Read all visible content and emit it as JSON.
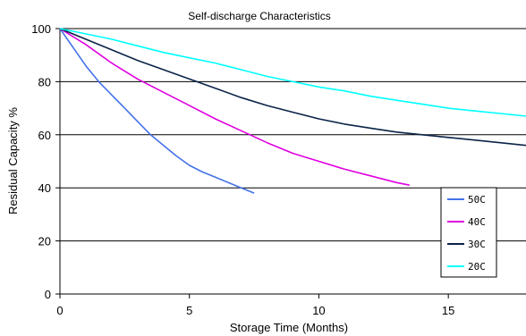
{
  "chart_data": {
    "type": "line",
    "title": "Self-discharge Characteristics",
    "xlabel": "Storage Time (Months)",
    "ylabel": "Residual Capacity %",
    "xlim": [
      0,
      18
    ],
    "ylim": [
      0,
      100
    ],
    "x_ticks": [
      "0",
      "5",
      "10",
      "15"
    ],
    "y_ticks": [
      "0",
      "20",
      "40",
      "60",
      "80",
      "100"
    ],
    "grid": "horizontal",
    "legend_position": "bottom-right",
    "series": [
      {
        "name": "50C",
        "color": "#4472E8",
        "x": [
          0,
          0.5,
          1,
          1.5,
          2,
          2.5,
          3,
          3.5,
          4,
          4.5,
          5,
          5.5,
          6,
          6.5,
          7,
          7.5
        ],
        "y": [
          100,
          93,
          86,
          80,
          75,
          70,
          65,
          60,
          56,
          52,
          48.5,
          46,
          44,
          42,
          40,
          38
        ]
      },
      {
        "name": "40C",
        "color": "#E000E0",
        "x": [
          0,
          1,
          2,
          3,
          4,
          5,
          6,
          7,
          8,
          9,
          10,
          11,
          12,
          13,
          13.5
        ],
        "y": [
          100,
          94,
          87,
          81,
          76,
          71,
          66,
          61.5,
          57,
          53,
          50,
          47,
          44.5,
          42,
          41
        ]
      },
      {
        "name": "30C",
        "color": "#0B2348",
        "x": [
          0,
          1,
          2,
          3,
          4,
          5,
          6,
          7,
          8,
          9,
          10,
          11,
          12,
          13,
          14,
          15,
          16,
          17,
          18
        ],
        "y": [
          100,
          96,
          92,
          88,
          84.5,
          81,
          77.5,
          74,
          71,
          68.5,
          66,
          64,
          62.5,
          61,
          60,
          59,
          58,
          57,
          56
        ]
      },
      {
        "name": "20C",
        "color": "#00FFFF",
        "x": [
          0,
          1,
          2,
          3,
          4,
          5,
          6,
          7,
          8,
          9,
          10,
          11,
          12,
          13,
          14,
          15,
          16,
          17,
          18
        ],
        "y": [
          100,
          98,
          96,
          93.5,
          91,
          89,
          87,
          84.5,
          82,
          80,
          78,
          76.5,
          74.5,
          73,
          71.5,
          70,
          69,
          68,
          67
        ]
      }
    ]
  }
}
